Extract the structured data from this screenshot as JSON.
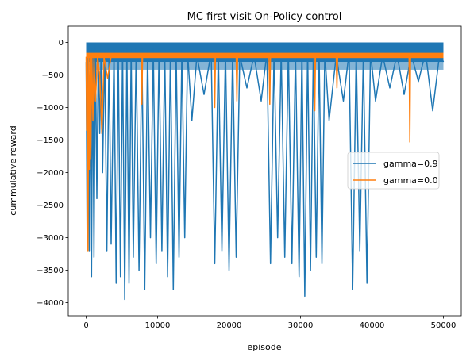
{
  "chart_data": {
    "type": "line",
    "title": "MC first visit On-Policy control",
    "xlabel": "episode",
    "ylabel": "cummulative reward",
    "xlim": [
      -2500,
      52500
    ],
    "ylim": [
      -4200,
      250
    ],
    "xticks": [
      0,
      10000,
      20000,
      30000,
      40000,
      50000
    ],
    "yticks": [
      0,
      -500,
      -1000,
      -1500,
      -2000,
      -2500,
      -3000,
      -3500,
      -4000
    ],
    "grid": false,
    "legend_position": "center-right",
    "series": [
      {
        "name": "gamma=0.9",
        "color": "#1f77b4",
        "upper_envelope": 0,
        "baseline_band": [
          -420,
          -300
        ],
        "points": [
          [
            0,
            -300
          ],
          [
            150,
            -3000
          ],
          [
            300,
            -200
          ],
          [
            450,
            -3200
          ],
          [
            600,
            -150
          ],
          [
            750,
            -3600
          ],
          [
            900,
            -100
          ],
          [
            1100,
            -3300
          ],
          [
            1300,
            -50
          ],
          [
            1500,
            -2400
          ],
          [
            1700,
            -150
          ],
          [
            1900,
            -1400
          ],
          [
            2100,
            -60
          ],
          [
            2300,
            -2000
          ],
          [
            2600,
            -80
          ],
          [
            2900,
            -3200
          ],
          [
            3200,
            -100
          ],
          [
            3500,
            -3100
          ],
          [
            3900,
            -100
          ],
          [
            4200,
            -3700
          ],
          [
            4500,
            -150
          ],
          [
            4800,
            -3600
          ],
          [
            5100,
            -100
          ],
          [
            5400,
            -3950
          ],
          [
            5700,
            -100
          ],
          [
            6000,
            -3700
          ],
          [
            6300,
            -120
          ],
          [
            6600,
            -3300
          ],
          [
            7000,
            -100
          ],
          [
            7400,
            -3500
          ],
          [
            7800,
            -100
          ],
          [
            8200,
            -3800
          ],
          [
            8600,
            -120
          ],
          [
            9000,
            -3000
          ],
          [
            9400,
            -100
          ],
          [
            9800,
            -3400
          ],
          [
            10200,
            -100
          ],
          [
            10600,
            -3200
          ],
          [
            11000,
            -120
          ],
          [
            11400,
            -3600
          ],
          [
            11800,
            -100
          ],
          [
            12200,
            -3800
          ],
          [
            12600,
            -150
          ],
          [
            13000,
            -3300
          ],
          [
            13400,
            -120
          ],
          [
            13800,
            -3000
          ],
          [
            14200,
            -150
          ],
          [
            14800,
            -1200
          ],
          [
            15500,
            -200
          ],
          [
            16500,
            -800
          ],
          [
            17500,
            -150
          ],
          [
            18000,
            -3400
          ],
          [
            18500,
            -150
          ],
          [
            19000,
            -3200
          ],
          [
            19500,
            -120
          ],
          [
            20000,
            -3500
          ],
          [
            20500,
            -150
          ],
          [
            21000,
            -3300
          ],
          [
            21500,
            -200
          ],
          [
            22500,
            -700
          ],
          [
            23500,
            -200
          ],
          [
            24500,
            -900
          ],
          [
            25300,
            -150
          ],
          [
            25800,
            -3400
          ],
          [
            26300,
            -120
          ],
          [
            26800,
            -3000
          ],
          [
            27300,
            -150
          ],
          [
            27800,
            -3300
          ],
          [
            28300,
            -120
          ],
          [
            28800,
            -3400
          ],
          [
            29300,
            -150
          ],
          [
            29800,
            -3600
          ],
          [
            30200,
            -120
          ],
          [
            30600,
            -3900
          ],
          [
            31000,
            -100
          ],
          [
            31400,
            -3500
          ],
          [
            31800,
            -120
          ],
          [
            32200,
            -3300
          ],
          [
            32600,
            -100
          ],
          [
            33000,
            -3400
          ],
          [
            33400,
            -150
          ],
          [
            34000,
            -1200
          ],
          [
            35000,
            -200
          ],
          [
            36000,
            -900
          ],
          [
            36800,
            -150
          ],
          [
            37300,
            -3800
          ],
          [
            37800,
            -120
          ],
          [
            38300,
            -3200
          ],
          [
            38800,
            -150
          ],
          [
            39300,
            -3700
          ],
          [
            39800,
            -150
          ],
          [
            40500,
            -900
          ],
          [
            41500,
            -200
          ],
          [
            42500,
            -700
          ],
          [
            43500,
            -180
          ],
          [
            44500,
            -800
          ],
          [
            45500,
            -180
          ],
          [
            46500,
            -600
          ],
          [
            47500,
            -150
          ],
          [
            48500,
            -1050
          ],
          [
            49500,
            -150
          ],
          [
            50000,
            -300
          ]
        ]
      },
      {
        "name": "gamma=0.0",
        "color": "#ff7f0e",
        "baseline": -200,
        "points": [
          [
            0,
            -220
          ],
          [
            80,
            -1350
          ],
          [
            160,
            -230
          ],
          [
            250,
            -3200
          ],
          [
            350,
            -210
          ],
          [
            450,
            -1950
          ],
          [
            550,
            -230
          ],
          [
            650,
            -1800
          ],
          [
            800,
            -210
          ],
          [
            950,
            -1200
          ],
          [
            1100,
            -220
          ],
          [
            1300,
            -900
          ],
          [
            1600,
            -210
          ],
          [
            1900,
            -500
          ],
          [
            2200,
            -1400
          ],
          [
            2500,
            -220
          ],
          [
            3000,
            -550
          ],
          [
            3500,
            -210
          ],
          [
            7700,
            -210
          ],
          [
            7800,
            -950
          ],
          [
            7900,
            -210
          ],
          [
            17900,
            -210
          ],
          [
            18000,
            -1000
          ],
          [
            18100,
            -210
          ],
          [
            21000,
            -210
          ],
          [
            21100,
            -900
          ],
          [
            21200,
            -210
          ],
          [
            25600,
            -210
          ],
          [
            25700,
            -950
          ],
          [
            25800,
            -210
          ],
          [
            31900,
            -210
          ],
          [
            32000,
            -1050
          ],
          [
            32100,
            -210
          ],
          [
            35000,
            -210
          ],
          [
            35100,
            -700
          ],
          [
            35200,
            -210
          ],
          [
            45200,
            -210
          ],
          [
            45300,
            -1530
          ],
          [
            45400,
            -210
          ],
          [
            50000,
            -210
          ]
        ]
      }
    ]
  }
}
